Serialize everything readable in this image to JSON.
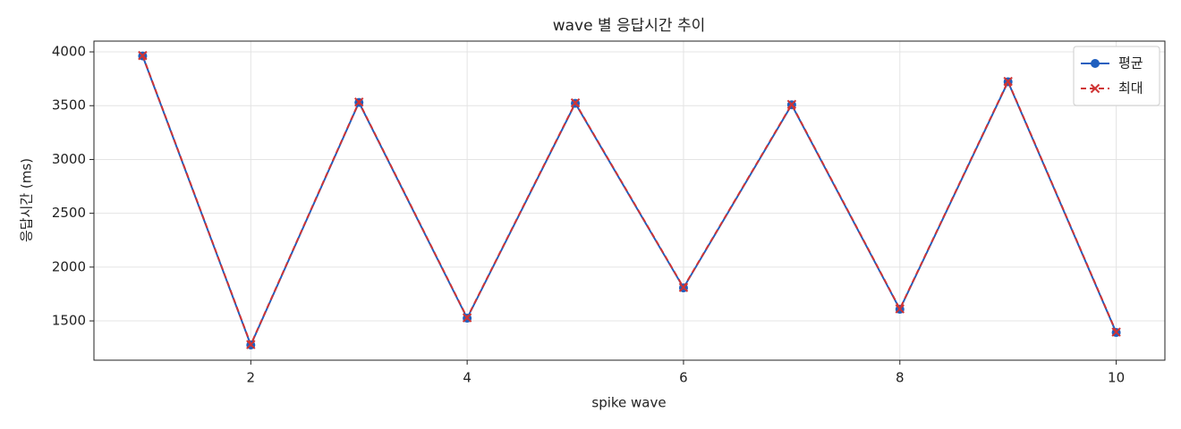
{
  "chart_data": {
    "type": "line",
    "title": "wave 별 응답시간 추이",
    "x_label": "spike wave",
    "y_label": "응답시간 (ms)",
    "x": [
      1,
      2,
      3,
      4,
      5,
      6,
      7,
      8,
      9,
      10
    ],
    "series": [
      {
        "name": "평균",
        "color": "#1f5fbf",
        "dash": "solid",
        "marker": "circle",
        "values": [
          3962,
          1276,
          3530,
          1525,
          3522,
          1807,
          3508,
          1608,
          3722,
          1392
        ]
      },
      {
        "name": "최대",
        "color": "#d03434",
        "dash": "dashed",
        "marker": "x",
        "values": [
          3966,
          1280,
          3534,
          1529,
          3526,
          1811,
          3512,
          1612,
          3726,
          1396
        ]
      }
    ],
    "xlim": [
      0.55,
      10.45
    ],
    "ylim": [
      1135,
      4100
    ],
    "xticks": [
      2,
      4,
      6,
      8,
      10
    ],
    "yticks": [
      1500,
      2000,
      2500,
      3000,
      3500,
      4000
    ],
    "grid": true,
    "legend": "upper right"
  }
}
